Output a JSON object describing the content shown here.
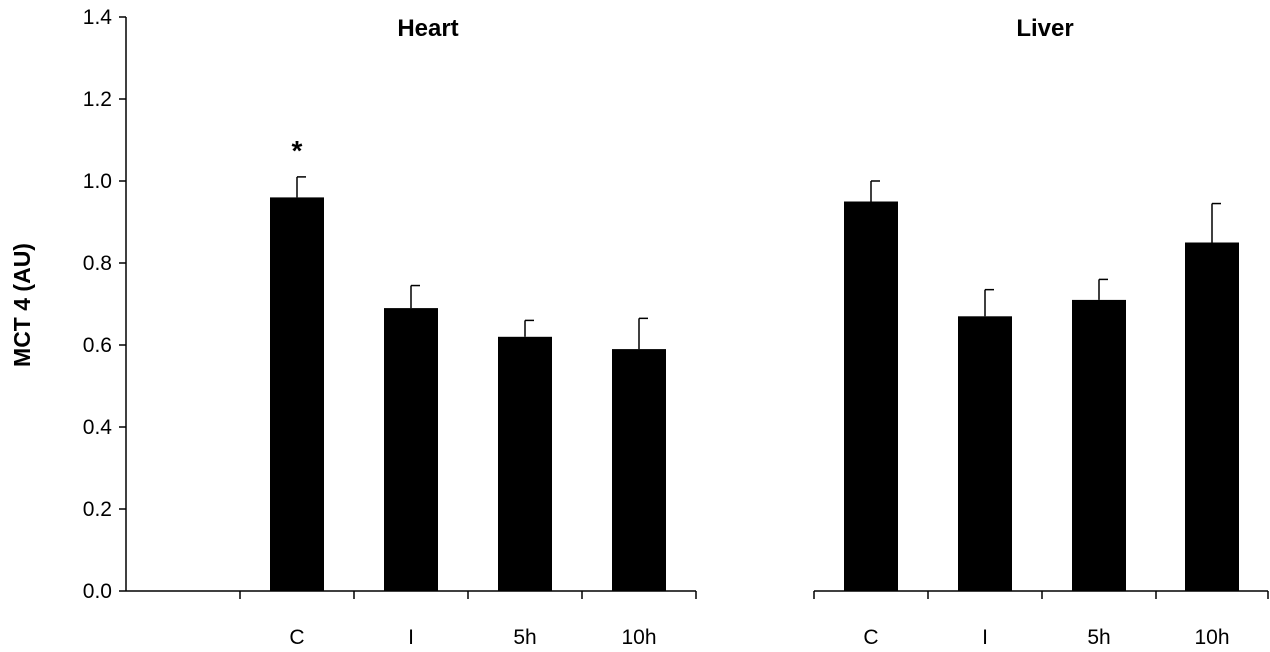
{
  "chart_data": {
    "type": "bar",
    "ylabel": "MCT 4 (AU)",
    "ylim": [
      0,
      1.4
    ],
    "yticks": [
      "0.0",
      "0.2",
      "0.4",
      "0.6",
      "0.8",
      "1.0",
      "1.2",
      "1.4"
    ],
    "grid": false,
    "panels": [
      {
        "title": "Heart",
        "categories": [
          "C",
          "I",
          "5h",
          "10h"
        ],
        "values": [
          0.96,
          0.69,
          0.62,
          0.59
        ],
        "errors": [
          0.05,
          0.055,
          0.04,
          0.075
        ],
        "annotations": [
          {
            "category": "C",
            "text": "*"
          }
        ]
      },
      {
        "title": "Liver",
        "categories": [
          "C",
          "I",
          "5h",
          "10h"
        ],
        "values": [
          0.95,
          0.67,
          0.71,
          0.85
        ],
        "errors": [
          0.05,
          0.065,
          0.05,
          0.095
        ],
        "annotations": []
      }
    ]
  }
}
